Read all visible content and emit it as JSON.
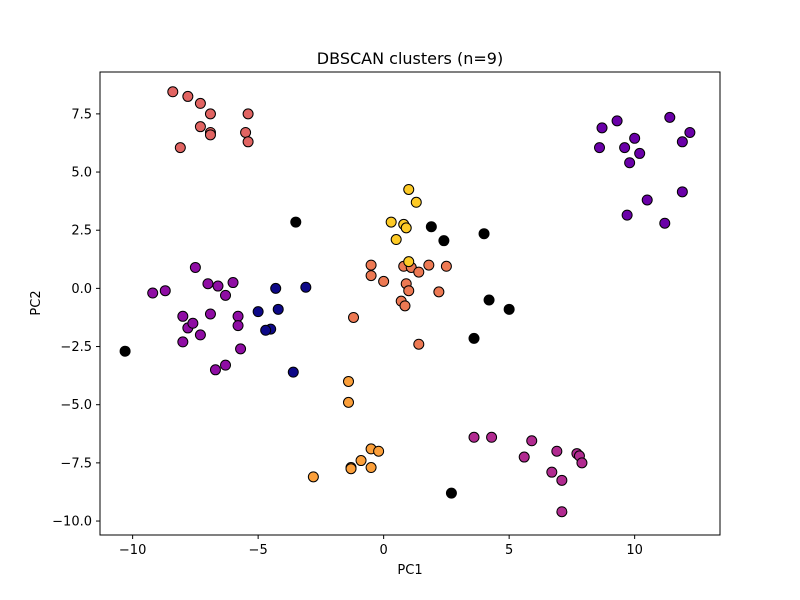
{
  "chart_data": {
    "type": "scatter",
    "title": "DBSCAN clusters (n=9)",
    "xlabel": "PC1",
    "ylabel": "PC2",
    "xlim": [
      -11.3,
      13.4
    ],
    "ylim": [
      -10.6,
      9.3
    ],
    "xticks": [
      -10,
      -5,
      0,
      5,
      10
    ],
    "yticks": [
      -10.0,
      -7.5,
      -5.0,
      -2.5,
      0.0,
      2.5,
      5.0,
      7.5
    ],
    "xtick_labels": [
      "−10",
      "−5",
      "0",
      "5",
      "10"
    ],
    "ytick_labels": [
      "−10.0",
      "−7.5",
      "−5.0",
      "−2.5",
      "0.0",
      "2.5",
      "5.0",
      "7.5"
    ],
    "grid": false,
    "marker_edge_color": "#000000",
    "series": [
      {
        "color": "#000000",
        "points": [
          [
            -10.3,
            -2.7
          ],
          [
            -3.5,
            2.85
          ],
          [
            1.9,
            2.65
          ],
          [
            2.4,
            2.05
          ],
          [
            4.0,
            2.35
          ],
          [
            4.2,
            -0.5
          ],
          [
            5.0,
            -0.9
          ],
          [
            3.6,
            -2.15
          ],
          [
            2.7,
            -8.8
          ]
        ]
      },
      {
        "color": "#0d0887",
        "points": [
          [
            -5.0,
            -1.0
          ],
          [
            -4.3,
            0.0
          ],
          [
            -4.2,
            -0.9
          ],
          [
            -4.5,
            -1.75
          ],
          [
            -4.7,
            -1.8
          ],
          [
            -3.1,
            0.05
          ],
          [
            -3.6,
            -3.6
          ]
        ]
      },
      {
        "color": "#6a00a8",
        "points": [
          [
            8.7,
            6.9
          ],
          [
            9.3,
            7.2
          ],
          [
            10.0,
            6.45
          ],
          [
            10.2,
            5.8
          ],
          [
            8.6,
            6.05
          ],
          [
            9.6,
            6.05
          ],
          [
            9.8,
            5.4
          ],
          [
            11.4,
            7.35
          ],
          [
            12.2,
            6.7
          ],
          [
            11.9,
            6.3
          ],
          [
            10.5,
            3.8
          ],
          [
            9.7,
            3.15
          ],
          [
            11.2,
            2.8
          ],
          [
            11.9,
            4.15
          ]
        ]
      },
      {
        "color": "#8f0da4",
        "points": [
          [
            -9.2,
            -0.2
          ],
          [
            -8.7,
            -0.1
          ],
          [
            -7.5,
            0.9
          ],
          [
            -7.0,
            0.2
          ],
          [
            -6.6,
            0.1
          ],
          [
            -6.0,
            0.25
          ],
          [
            -6.3,
            -0.3
          ],
          [
            -5.8,
            -1.2
          ],
          [
            -5.8,
            -1.6
          ],
          [
            -5.7,
            -2.6
          ],
          [
            -6.9,
            -1.1
          ],
          [
            -7.3,
            -2.0
          ],
          [
            -7.8,
            -1.7
          ],
          [
            -7.6,
            -1.5
          ],
          [
            -8.0,
            -1.2
          ],
          [
            -8.0,
            -2.3
          ],
          [
            -6.7,
            -3.5
          ],
          [
            -6.3,
            -3.3
          ]
        ]
      },
      {
        "color": "#b12a90",
        "points": [
          [
            3.6,
            -6.4
          ],
          [
            4.3,
            -6.4
          ],
          [
            5.6,
            -7.25
          ],
          [
            5.9,
            -6.55
          ],
          [
            6.7,
            -7.9
          ],
          [
            6.9,
            -7.0
          ],
          [
            7.1,
            -8.25
          ],
          [
            7.7,
            -7.1
          ],
          [
            7.8,
            -7.2
          ],
          [
            7.9,
            -7.5
          ],
          [
            7.1,
            -9.6
          ]
        ]
      },
      {
        "color": "#e16462",
        "points": [
          [
            -8.4,
            8.45
          ],
          [
            -7.8,
            8.25
          ],
          [
            -7.3,
            7.95
          ],
          [
            -6.9,
            7.5
          ],
          [
            -5.4,
            7.5
          ],
          [
            -7.3,
            6.95
          ],
          [
            -6.9,
            6.7
          ],
          [
            -6.9,
            6.6
          ],
          [
            -5.5,
            6.7
          ],
          [
            -5.4,
            6.3
          ],
          [
            -8.1,
            6.05
          ]
        ]
      },
      {
        "color": "#ed7953",
        "points": [
          [
            -0.5,
            1.0
          ],
          [
            -0.5,
            0.55
          ],
          [
            0.0,
            0.3
          ],
          [
            0.8,
            0.95
          ],
          [
            1.1,
            0.9
          ],
          [
            1.4,
            0.7
          ],
          [
            1.8,
            1.0
          ],
          [
            2.5,
            0.95
          ],
          [
            0.9,
            0.2
          ],
          [
            1.0,
            -0.1
          ],
          [
            0.7,
            -0.55
          ],
          [
            0.85,
            -0.75
          ],
          [
            2.2,
            -0.15
          ],
          [
            -1.2,
            -1.25
          ],
          [
            1.4,
            -2.4
          ]
        ]
      },
      {
        "color": "#fb9f3a",
        "points": [
          [
            -1.4,
            -4.0
          ],
          [
            -1.4,
            -4.9
          ],
          [
            -0.5,
            -6.9
          ],
          [
            -0.2,
            -7.0
          ],
          [
            -0.9,
            -7.4
          ],
          [
            -1.3,
            -7.7
          ],
          [
            -1.3,
            -7.75
          ],
          [
            -0.5,
            -7.7
          ],
          [
            -2.8,
            -8.1
          ]
        ]
      },
      {
        "color": "#fdca26",
        "points": [
          [
            1.0,
            4.25
          ],
          [
            1.3,
            3.7
          ],
          [
            0.3,
            2.85
          ],
          [
            0.8,
            2.75
          ],
          [
            0.9,
            2.6
          ],
          [
            0.5,
            2.1
          ],
          [
            1.0,
            1.15
          ]
        ]
      }
    ]
  }
}
